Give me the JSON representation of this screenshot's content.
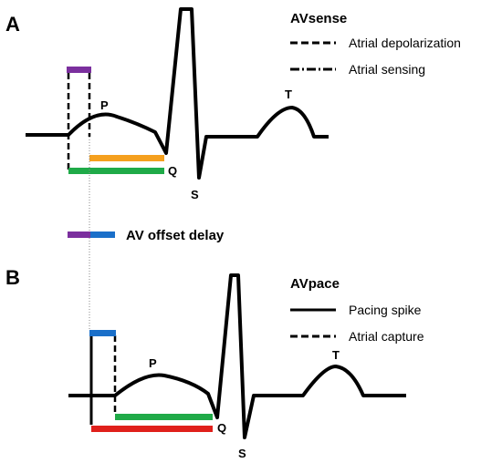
{
  "panel_a": {
    "letter": "A",
    "legend_title": "AVsense",
    "legend_items": [
      "Atrial depolarization",
      "Atrial sensing"
    ],
    "wave_labels": {
      "p": "P",
      "q": "Q",
      "s": "S",
      "t": "T"
    }
  },
  "middle": {
    "offset_label": "AV offset delay"
  },
  "panel_b": {
    "letter": "B",
    "legend_title": "AVpace",
    "legend_items": [
      "Pacing spike",
      "Atrial capture"
    ],
    "wave_labels": {
      "p": "P",
      "q": "Q",
      "s": "S",
      "t": "T"
    }
  },
  "colors": {
    "purple": "#7b2f9e",
    "blue": "#1a6fc9",
    "orange": "#f5a01e",
    "green": "#1faa48",
    "red": "#e0201b",
    "trace": "#000000"
  }
}
